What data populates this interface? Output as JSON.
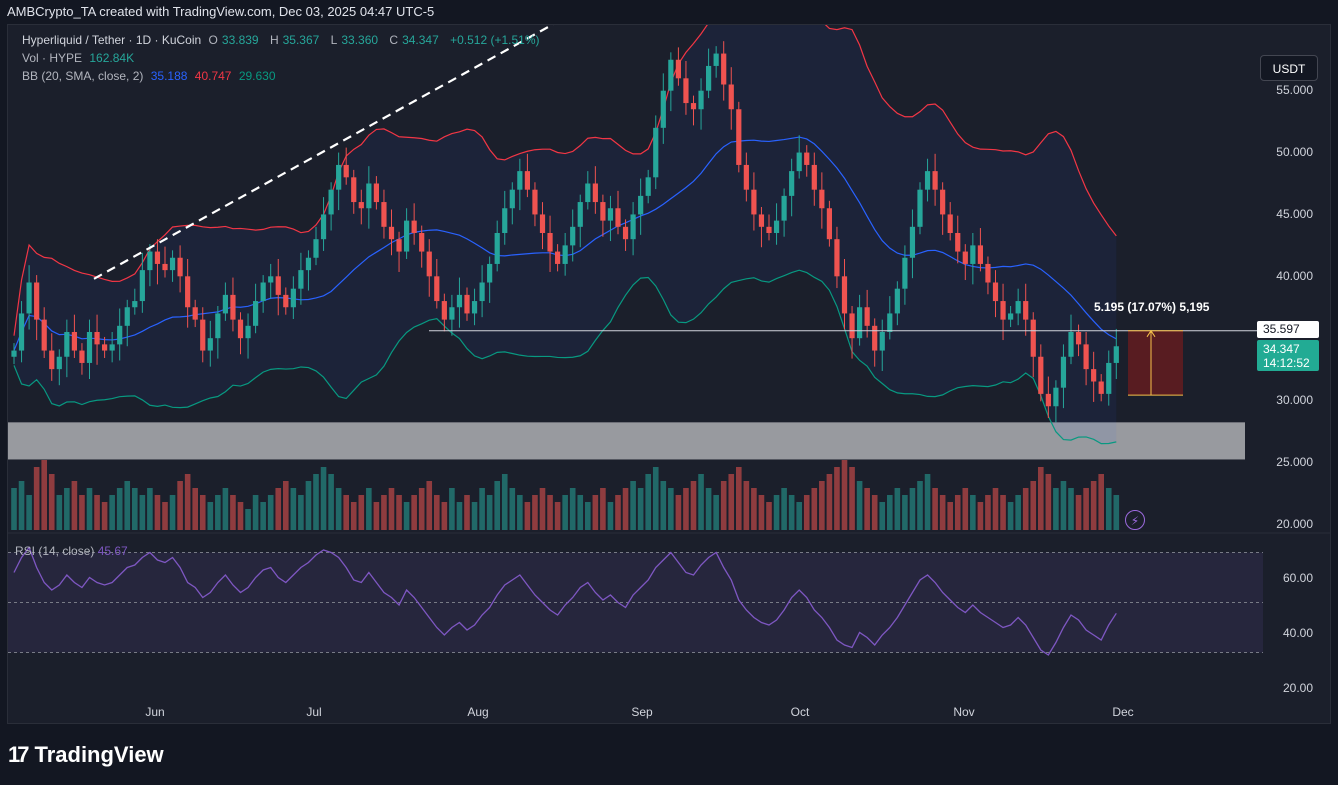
{
  "header": {
    "text": "AMBCrypto_TA created with TradingView.com, Dec 03, 2025 04:47 UTC-5"
  },
  "legend": {
    "symbol": "Hyperliquid / Tether · 1D · KuCoin",
    "o_label": "O",
    "o_value": "33.839",
    "h_label": "H",
    "h_value": "35.367",
    "l_label": "L",
    "l_value": "33.360",
    "c_label": "C",
    "c_value": "34.347",
    "change": "+0.512 (+1.51%)",
    "vol_label": "Vol · HYPE",
    "vol_value": "162.84K",
    "bb_label": "BB (20, SMA, close, 2)",
    "bb_basis": "35.188",
    "bb_upper": "40.747",
    "bb_lower": "29.630"
  },
  "currency_button": "USDT",
  "price_axis": [
    "55.000",
    "50.000",
    "45.000",
    "40.000",
    "30.000",
    "25.000",
    "20.000"
  ],
  "rsi_axis": [
    "60.00",
    "40.00",
    "20.00"
  ],
  "time_axis": [
    "Jun",
    "Jul",
    "Aug",
    "Sep",
    "Oct",
    "Nov",
    "Dec"
  ],
  "price_line_tag": "35.597",
  "last_price_tag": {
    "price": "34.347",
    "countdown": "14:12:52"
  },
  "measure_label": "5.195 (17.07%) 5,195",
  "rsi": {
    "label": "RSI (14, close)",
    "value": "45.67"
  },
  "brand": "TradingView",
  "colors": {
    "up": "#26a69a",
    "down": "#ef5350",
    "bb_basis": "#2962ff",
    "bb_upper": "#f23645",
    "bb_lower": "#089981",
    "rsi": "#7e57c2",
    "background": "#131722"
  },
  "chart_data": {
    "type": "candlestick",
    "price_range": [
      19.5,
      59.5
    ],
    "rsi_range": [
      15,
      75
    ],
    "rsi_levels": [
      70,
      50,
      30
    ],
    "closes": [
      34.0,
      37.0,
      39.5,
      36.5,
      34.0,
      32.5,
      33.5,
      35.5,
      34.0,
      33.0,
      35.5,
      34.5,
      34.0,
      34.5,
      36.0,
      37.5,
      38.0,
      40.5,
      42.0,
      41.0,
      40.5,
      41.5,
      40.0,
      37.5,
      36.5,
      34.0,
      35.0,
      37.0,
      38.5,
      36.5,
      35.0,
      36.0,
      38.0,
      39.5,
      40.0,
      38.5,
      37.5,
      39.0,
      40.5,
      41.5,
      43.0,
      45.0,
      47.0,
      49.0,
      48.0,
      46.0,
      45.5,
      47.5,
      46.0,
      44.0,
      43.0,
      42.0,
      44.5,
      43.5,
      42.0,
      40.0,
      38.0,
      36.5,
      37.5,
      38.5,
      37.0,
      38.0,
      39.5,
      41.0,
      43.5,
      45.5,
      47.0,
      48.5,
      47.0,
      45.0,
      43.5,
      42.0,
      41.0,
      42.5,
      44.0,
      46.0,
      47.5,
      46.0,
      44.5,
      45.5,
      44.0,
      43.0,
      45.0,
      46.5,
      48.0,
      52.0,
      55.0,
      57.5,
      56.0,
      54.0,
      53.5,
      55.0,
      57.0,
      58.0,
      55.5,
      53.5,
      49.0,
      47.0,
      45.0,
      44.0,
      43.5,
      44.5,
      46.5,
      48.5,
      50.0,
      49.0,
      47.0,
      45.5,
      43.0,
      40.0,
      37.0,
      35.0,
      37.5,
      36.0,
      34.0,
      35.5,
      37.0,
      39.0,
      41.5,
      44.0,
      47.0,
      48.5,
      47.0,
      45.0,
      43.5,
      42.0,
      41.0,
      42.5,
      41.0,
      39.5,
      38.0,
      36.5,
      37.0,
      38.0,
      36.5,
      33.5,
      30.5,
      29.5,
      31.0,
      33.5,
      35.5,
      34.5,
      32.5,
      31.5,
      30.5,
      33.0,
      34.347
    ],
    "volumes": [
      0.6,
      0.7,
      0.5,
      0.9,
      1.0,
      0.8,
      0.5,
      0.6,
      0.7,
      0.5,
      0.6,
      0.5,
      0.4,
      0.5,
      0.6,
      0.7,
      0.6,
      0.5,
      0.6,
      0.5,
      0.4,
      0.5,
      0.7,
      0.8,
      0.6,
      0.5,
      0.4,
      0.5,
      0.6,
      0.5,
      0.4,
      0.3,
      0.5,
      0.4,
      0.5,
      0.6,
      0.7,
      0.6,
      0.5,
      0.7,
      0.8,
      0.9,
      0.8,
      0.6,
      0.5,
      0.4,
      0.5,
      0.6,
      0.4,
      0.5,
      0.6,
      0.5,
      0.4,
      0.5,
      0.6,
      0.7,
      0.5,
      0.4,
      0.6,
      0.4,
      0.5,
      0.4,
      0.6,
      0.5,
      0.7,
      0.8,
      0.6,
      0.5,
      0.4,
      0.5,
      0.6,
      0.5,
      0.4,
      0.5,
      0.6,
      0.5,
      0.4,
      0.5,
      0.6,
      0.4,
      0.5,
      0.6,
      0.7,
      0.6,
      0.8,
      0.9,
      0.7,
      0.6,
      0.5,
      0.6,
      0.7,
      0.8,
      0.6,
      0.5,
      0.7,
      0.8,
      0.9,
      0.7,
      0.6,
      0.5,
      0.4,
      0.5,
      0.6,
      0.5,
      0.4,
      0.5,
      0.6,
      0.7,
      0.8,
      0.9,
      1.0,
      0.9,
      0.7,
      0.6,
      0.5,
      0.4,
      0.5,
      0.6,
      0.5,
      0.6,
      0.7,
      0.8,
      0.6,
      0.5,
      0.4,
      0.5,
      0.6,
      0.5,
      0.4,
      0.5,
      0.6,
      0.5,
      0.4,
      0.5,
      0.6,
      0.7,
      0.9,
      0.8,
      0.6,
      0.7,
      0.6,
      0.5,
      0.6,
      0.7,
      0.8,
      0.6,
      0.5
    ],
    "rsi": [
      62,
      68,
      72,
      64,
      58,
      55,
      57,
      61,
      58,
      56,
      60,
      58,
      57,
      58,
      61,
      64,
      65,
      68,
      70,
      67,
      66,
      68,
      64,
      58,
      56,
      52,
      54,
      58,
      61,
      57,
      54,
      56,
      60,
      63,
      64,
      60,
      58,
      61,
      64,
      66,
      69,
      71,
      70,
      68,
      64,
      59,
      58,
      62,
      58,
      54,
      52,
      49,
      55,
      52,
      48,
      44,
      40,
      37,
      40,
      42,
      39,
      41,
      45,
      48,
      53,
      57,
      59,
      61,
      57,
      53,
      50,
      47,
      45,
      49,
      52,
      56,
      58,
      54,
      51,
      53,
      50,
      48,
      53,
      56,
      59,
      64,
      67,
      70,
      66,
      62,
      61,
      65,
      68,
      70,
      64,
      59,
      51,
      47,
      44,
      42,
      41,
      43,
      47,
      52,
      55,
      52,
      47,
      44,
      40,
      35,
      33,
      32,
      38,
      36,
      33,
      37,
      40,
      44,
      49,
      54,
      59,
      61,
      58,
      54,
      51,
      48,
      46,
      49,
      46,
      44,
      42,
      40,
      41,
      44,
      41,
      36,
      31,
      29,
      34,
      40,
      45,
      43,
      39,
      37,
      35,
      41,
      45.67
    ],
    "bb_upper_last": 40.747,
    "bb_basis_last": 35.188,
    "bb_lower_last": 29.63,
    "trendline": [
      [
        0,
        39.8
      ],
      [
        142,
        63.0
      ]
    ],
    "horizontal_line": 35.597,
    "support_zone": [
      25.2,
      28.2
    ],
    "measure": {
      "from": 30.402,
      "to": 35.597
    }
  }
}
